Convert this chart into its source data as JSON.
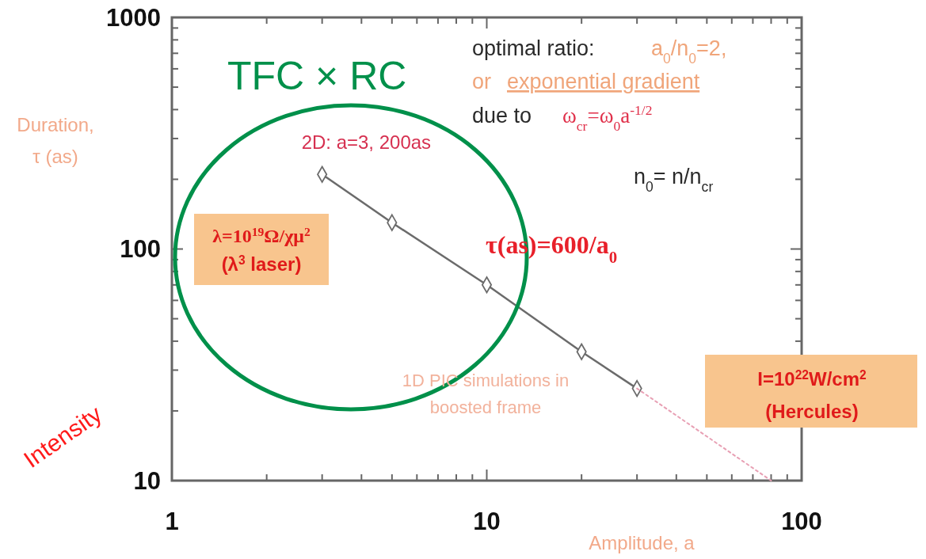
{
  "chart_data": {
    "type": "line",
    "log": "xy",
    "grid": false,
    "xlabel": "Amplitude, a",
    "ylabel": "Duration, τ (as)",
    "xlim": [
      1,
      100
    ],
    "ylim": [
      10,
      1000
    ],
    "xticks": [
      1,
      {
        "value": 2,
        "label": null
      },
      {
        "value": 3,
        "label": null
      },
      {
        "value": 4,
        "label": null
      },
      {
        "value": 5,
        "label": null
      },
      {
        "value": 6,
        "label": null
      },
      {
        "value": 7,
        "label": null
      },
      {
        "value": 8,
        "label": null
      },
      {
        "value": 9,
        "label": null
      },
      10,
      {
        "value": 20,
        "label": null
      },
      {
        "value": 30,
        "label": null
      },
      {
        "value": 40,
        "label": null
      },
      {
        "value": 50,
        "label": null
      },
      {
        "value": 60,
        "label": null
      },
      {
        "value": 70,
        "label": null
      },
      {
        "value": 80,
        "label": null
      },
      {
        "value": 90,
        "label": null
      },
      100
    ],
    "yticks": [
      10,
      {
        "value": 20,
        "label": null
      },
      {
        "value": 30,
        "label": null
      },
      {
        "value": 40,
        "label": null
      },
      {
        "value": 50,
        "label": null
      },
      {
        "value": 60,
        "label": null
      },
      {
        "value": 70,
        "label": null
      },
      {
        "value": 80,
        "label": null
      },
      {
        "value": 90,
        "label": null
      },
      100,
      {
        "value": 200,
        "label": null
      },
      {
        "value": 300,
        "label": null
      },
      {
        "value": 400,
        "label": null
      },
      {
        "value": 500,
        "label": null
      },
      {
        "value": 600,
        "label": null
      },
      {
        "value": 700,
        "label": null
      },
      {
        "value": 800,
        "label": null
      },
      {
        "value": 900,
        "label": null
      },
      1000
    ],
    "series": [
      {
        "color": "#6b6b6b",
        "x": [
          3,
          5,
          10,
          20,
          30
        ],
        "values": [
          210,
          130,
          70,
          36,
          25
        ],
        "marker": "diamond",
        "line_style": "solid"
      },
      {
        "color": "#e8a0b4",
        "x": [
          30,
          80
        ],
        "values": [
          25,
          10
        ],
        "marker": "none",
        "line_style": "dotted"
      }
    ],
    "annotations": [
      "TFC × RC",
      "optimal ratio:",
      "a$_{0}$/n$_{0}$=2,",
      "or",
      "exponential gradient",
      "due to",
      "ω$_{cr}$=ω$_{0}$a$^{-1/2}$",
      "n$_{0}$= n/n$_{cr}$",
      "τ(as)=600/a$_{0}$",
      {
        "text": "2D: a=3, 200as",
        "x": 3,
        "y": 210
      },
      "λ=10$^{19}$Ω/χμ$^{2}$",
      "(λ$^{3}$ laser)",
      "1D PIC simulations in",
      "boosted frame",
      "I=10$^{22}$W/cm$^{2}$",
      "(Hercules)",
      "Intensity"
    ]
  }
}
